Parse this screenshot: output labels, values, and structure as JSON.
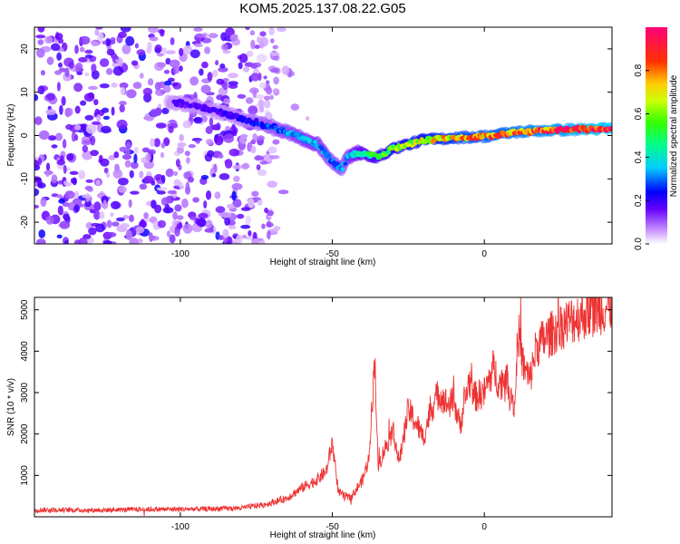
{
  "title": "KOM5.2025.137.08.22.G05",
  "chart_data": [
    {
      "type": "heatmap",
      "xlabel": "Height of straight line (km)",
      "ylabel": "Frequency (Hz)",
      "xlim": [
        -148,
        42
      ],
      "ylim": [
        -25,
        25
      ],
      "x_ticks": [
        -100,
        -50,
        0
      ],
      "x_tick_labels": [
        "-100",
        "-50",
        "0"
      ],
      "y_ticks": [
        -20,
        -10,
        0,
        10,
        20
      ],
      "y_tick_labels": [
        "-20",
        "-10",
        "0",
        "10",
        "20"
      ],
      "colorbar": {
        "label": "Normalized spectral amplitude",
        "range": [
          0,
          1
        ],
        "ticks": [
          0.0,
          0.2,
          0.4,
          0.6,
          0.8
        ],
        "tick_labels": [
          "0.0",
          "0.2",
          "0.4",
          "0.6",
          "0.8"
        ],
        "colormap": "rainbow"
      },
      "ridge": {
        "x": [
          -100,
          -90,
          -80,
          -70,
          -62,
          -55,
          -50,
          -47,
          -45,
          -42,
          -35,
          -30,
          -20,
          -10,
          0,
          10,
          20,
          30,
          42
        ],
        "y": [
          7.5,
          6,
          4,
          2,
          0,
          -2,
          -6,
          -8,
          -5,
          -4,
          -5,
          -3,
          -1,
          -0.5,
          -0.2,
          0.8,
          1.2,
          1.4,
          1.6
        ],
        "amplitude": [
          0.18,
          0.2,
          0.22,
          0.3,
          0.35,
          0.38,
          0.3,
          0.32,
          0.35,
          0.45,
          0.55,
          0.62,
          0.7,
          0.78,
          0.82,
          0.86,
          0.9,
          0.95,
          1.0
        ]
      },
      "grid": false
    },
    {
      "type": "line",
      "xlabel": "Height of straight line (km)",
      "ylabel": "SNR (10 * v/v)",
      "xlim": [
        -148,
        42
      ],
      "ylim": [
        0,
        5300
      ],
      "x_ticks": [
        -100,
        -50,
        0
      ],
      "x_tick_labels": [
        "-100",
        "-50",
        "0"
      ],
      "y_ticks": [
        1000,
        2000,
        3000,
        4000,
        5000
      ],
      "y_tick_labels": [
        "1000",
        "2000",
        "3000",
        "4000",
        "5000"
      ],
      "color": "#ee3333",
      "x": [
        -148,
        -130,
        -110,
        -90,
        -80,
        -72,
        -65,
        -60,
        -55,
        -52,
        -50,
        -48,
        -46,
        -44,
        -40,
        -38,
        -36,
        -35,
        -33,
        -30,
        -28,
        -25,
        -22,
        -20,
        -18,
        -15,
        -12,
        -10,
        -8,
        -5,
        -3,
        0,
        3,
        5,
        7,
        9,
        10,
        11,
        13,
        15,
        17,
        20,
        25,
        30,
        35,
        42
      ],
      "y": [
        170,
        160,
        180,
        190,
        210,
        300,
        450,
        700,
        900,
        1100,
        1800,
        600,
        500,
        450,
        900,
        1400,
        3850,
        1200,
        1600,
        2100,
        1300,
        2600,
        2200,
        1900,
        2500,
        3000,
        2700,
        2800,
        2200,
        3300,
        2900,
        3000,
        3600,
        3200,
        3400,
        3000,
        2600,
        4500,
        3600,
        3300,
        4100,
        4300,
        4600,
        4800,
        4950,
        5100
      ],
      "grid": false
    }
  ]
}
